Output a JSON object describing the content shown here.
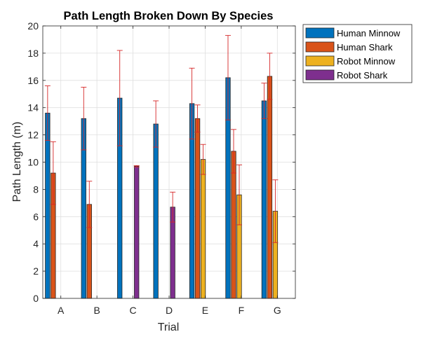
{
  "chart_data": {
    "type": "bar",
    "title": "Path Length Broken Down By Species",
    "xlabel": "Trial",
    "ylabel": "Path Length (m)",
    "categories": [
      "A",
      "B",
      "C",
      "D",
      "E",
      "F",
      "G"
    ],
    "ylim": [
      0,
      20
    ],
    "yticks": [
      0,
      2,
      4,
      6,
      8,
      10,
      12,
      14,
      16,
      18,
      20
    ],
    "grid": true,
    "legend_position": "top-right-outside",
    "series": [
      {
        "name": "Human Minnow",
        "color": "#0072BD",
        "values": [
          13.6,
          13.2,
          14.7,
          12.8,
          14.3,
          16.2,
          14.5
        ],
        "error": [
          2.0,
          2.3,
          3.5,
          1.7,
          2.6,
          3.1,
          1.3
        ]
      },
      {
        "name": "Human Shark",
        "color": "#D95319",
        "values": [
          9.2,
          6.9,
          null,
          null,
          13.2,
          10.8,
          16.3
        ],
        "error": [
          2.3,
          1.7,
          null,
          null,
          1.0,
          1.6,
          1.7
        ]
      },
      {
        "name": "Robot Minnow",
        "color": "#EDB120",
        "values": [
          null,
          null,
          null,
          null,
          10.2,
          7.6,
          6.4
        ],
        "error": [
          null,
          null,
          null,
          null,
          1.1,
          2.2,
          2.3
        ]
      },
      {
        "name": "Robot Shark",
        "color": "#7E2F8E",
        "values": [
          null,
          null,
          9.7,
          6.7,
          null,
          null,
          null
        ],
        "error": [
          null,
          null,
          0.05,
          1.1,
          null,
          null,
          null
        ]
      }
    ],
    "error_bar_color": "#D62728"
  }
}
